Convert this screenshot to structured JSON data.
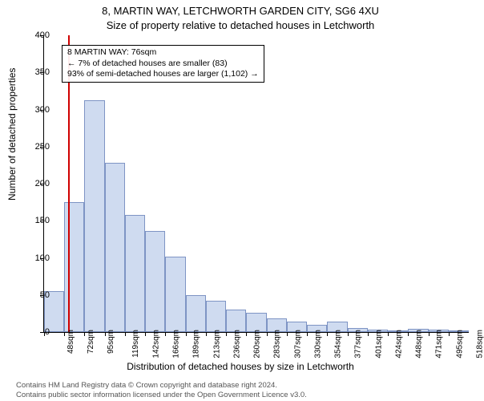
{
  "title": "8, MARTIN WAY, LETCHWORTH GARDEN CITY, SG6 4XU",
  "subtitle": "Size of property relative to detached houses in Letchworth",
  "ylabel": "Number of detached properties",
  "xlabel": "Distribution of detached houses by size in Letchworth",
  "attribution1": "Contains HM Land Registry data © Crown copyright and database right 2024.",
  "attribution2": "Contains public sector information licensed under the Open Government Licence v3.0.",
  "info": {
    "line1": "8 MARTIN WAY: 76sqm",
    "line2": "← 7% of detached houses are smaller (83)",
    "line3": "93% of semi-detached houses are larger (1,102) →"
  },
  "chart": {
    "type": "histogram",
    "ylim": [
      0,
      400
    ],
    "ytick_step": 50,
    "marker_x_value": 76,
    "marker_color": "#d00000",
    "bar_fill": "rgba(130,160,215,0.38)",
    "bar_border": "rgba(60,90,160,0.55)",
    "background": "#ffffff",
    "x_bin_start": 48,
    "x_bin_width": 23.5,
    "x_tick_labels": [
      "48sqm",
      "72sqm",
      "95sqm",
      "119sqm",
      "142sqm",
      "166sqm",
      "189sqm",
      "213sqm",
      "236sqm",
      "260sqm",
      "283sqm",
      "307sqm",
      "330sqm",
      "354sqm",
      "377sqm",
      "401sqm",
      "424sqm",
      "448sqm",
      "471sqm",
      "495sqm",
      "518sqm"
    ],
    "values": [
      55,
      175,
      312,
      228,
      158,
      136,
      102,
      50,
      42,
      30,
      26,
      18,
      14,
      10,
      14,
      5,
      3,
      2,
      4,
      3,
      2
    ]
  }
}
